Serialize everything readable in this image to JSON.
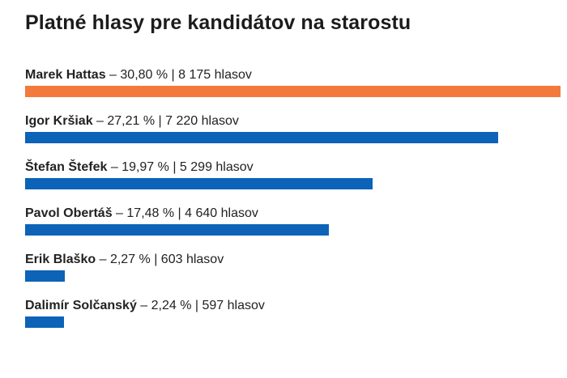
{
  "chart_data": {
    "type": "bar",
    "orientation": "horizontal",
    "title": "Platné hlasy pre kandidátov na starostu",
    "categories": [
      "Marek Hattas",
      "Igor Kršiak",
      "Štefan Štefek",
      "Pavol Obertáš",
      "Erik Blaško",
      "Dalimír Solčanský"
    ],
    "values": [
      30.8,
      27.21,
      19.97,
      17.48,
      2.27,
      2.24
    ],
    "rows": [
      {
        "name": "Marek Hattas",
        "detail": " – 30,80 % | 8 175 hlasov",
        "percent": 30.8,
        "votes": 8175,
        "color": "#f37a3a"
      },
      {
        "name": "Igor Kršiak",
        "detail": " – 27,21 % | 7 220 hlasov",
        "percent": 27.21,
        "votes": 7220,
        "color": "#0c63b8"
      },
      {
        "name": "Štefan Štefek",
        "detail": " – 19,97 % | 5 299 hlasov",
        "percent": 19.97,
        "votes": 5299,
        "color": "#0c63b8"
      },
      {
        "name": "Pavol Obertáš",
        "detail": " – 17,48 % | 4 640 hlasov",
        "percent": 17.48,
        "votes": 4640,
        "color": "#0c63b8"
      },
      {
        "name": "Erik Blaško",
        "detail": " – 2,27 % | 603 hlasov",
        "percent": 2.27,
        "votes": 603,
        "color": "#0c63b8"
      },
      {
        "name": "Dalimír Solčanský",
        "detail": " – 2,24 % | 597 hlasov",
        "percent": 2.24,
        "votes": 597,
        "color": "#0c63b8"
      }
    ],
    "xlim": [
      0,
      30.8
    ],
    "grid": false,
    "legend": "none"
  }
}
